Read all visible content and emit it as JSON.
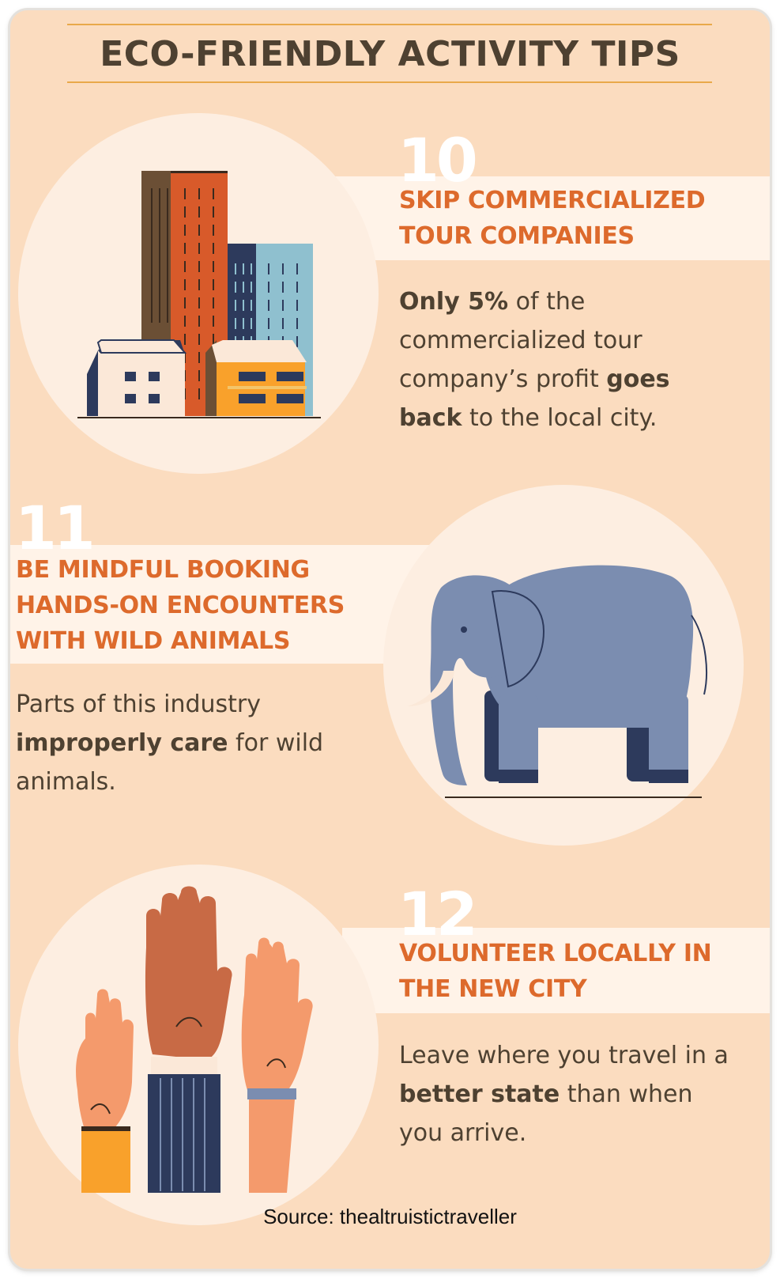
{
  "title": "ECO-FRIENDLY ACTIVITY TIPS",
  "colors": {
    "background": "#fbdcbf",
    "heading": "#dd6a2c",
    "text": "#4e4131",
    "rule": "#e9a94a"
  },
  "tips": [
    {
      "number": "10",
      "heading_lines": [
        "SKIP COMMERCIALIZED",
        "TOUR COMPANIES"
      ],
      "body": [
        {
          "text": "Only 5%",
          "bold": true
        },
        {
          "text": " of the commercialized tour company’s profit ",
          "bold": false
        },
        {
          "text": "goes back",
          "bold": true
        },
        {
          "text": " to the local city.",
          "bold": false
        }
      ],
      "icon": "buildings-icon"
    },
    {
      "number": "11",
      "heading_lines": [
        "BE MINDFUL BOOKING",
        "HANDS-ON ENCOUNTERS",
        "WITH WILD ANIMALS"
      ],
      "body": [
        {
          "text": "Parts of this industry ",
          "bold": false
        },
        {
          "text": "improperly care",
          "bold": true
        },
        {
          "text": " for wild animals.",
          "bold": false
        }
      ],
      "icon": "elephant-icon"
    },
    {
      "number": "12",
      "heading_lines": [
        "VOLUNTEER LOCALLY IN",
        "THE NEW CITY"
      ],
      "body": [
        {
          "text": "Leave where you travel in a ",
          "bold": false
        },
        {
          "text": "better state",
          "bold": true
        },
        {
          "text": " than when you arrive.",
          "bold": false
        }
      ],
      "icon": "raised-hands-icon"
    }
  ],
  "source": "Source: thealtruistictraveller"
}
